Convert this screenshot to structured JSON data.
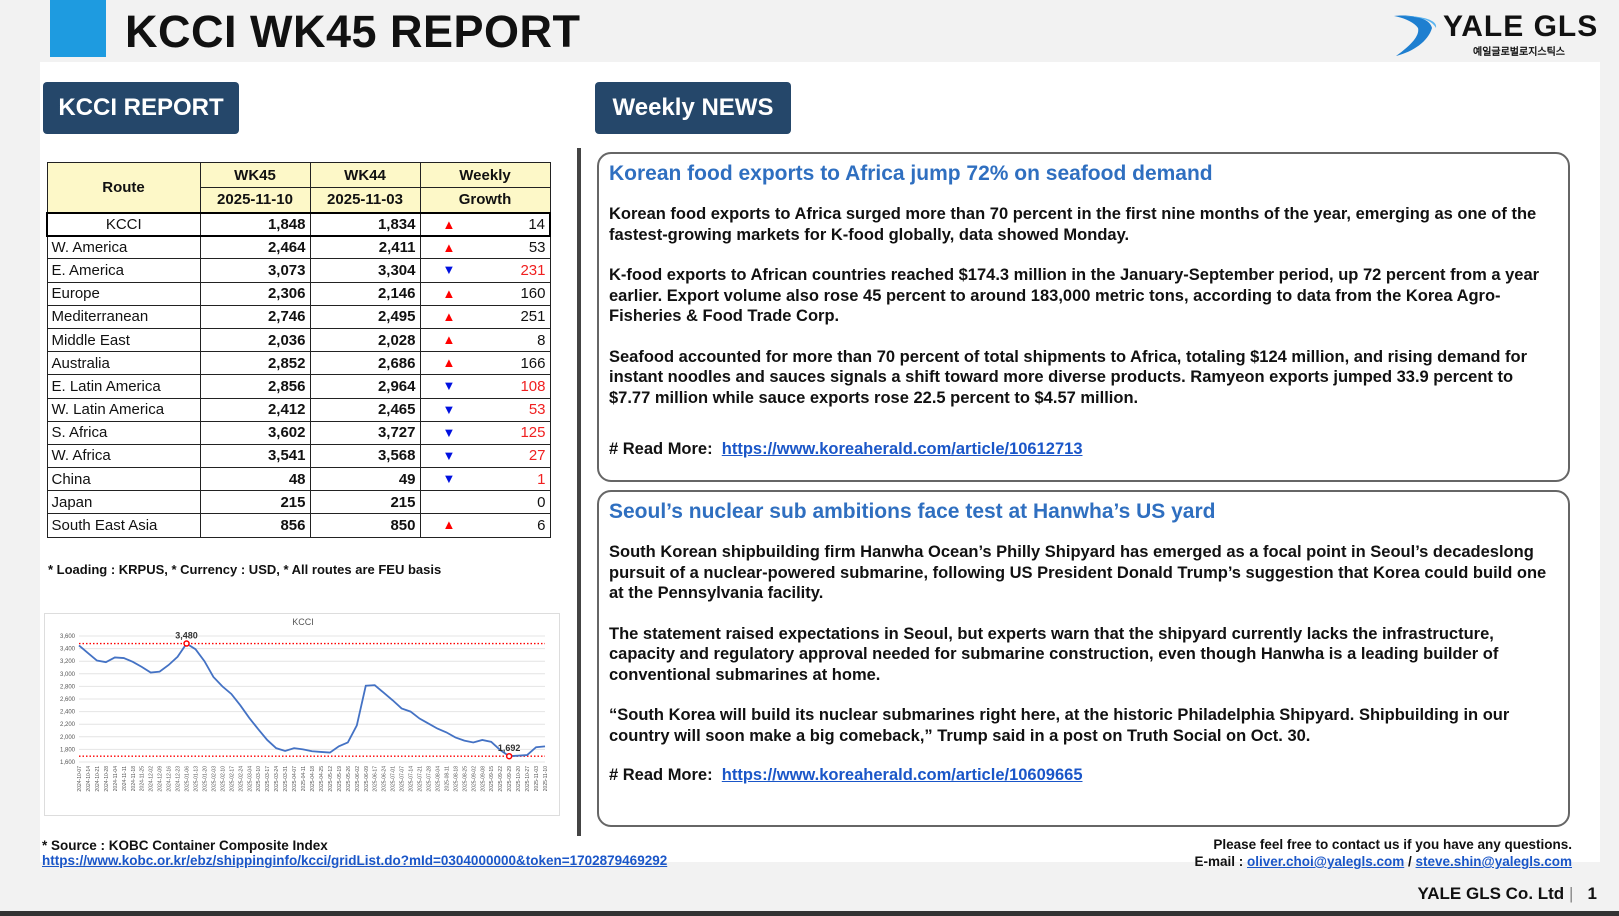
{
  "header": {
    "title": "KCCI WK45 REPORT",
    "logo": "YALE GLS",
    "logo_sub": "예일글로벌로지스틱스"
  },
  "left": {
    "badge": "KCCI REPORT",
    "table": {
      "headers": {
        "route": "Route",
        "wk45": "WK45",
        "wk45_date": "2025-11-10",
        "wk44": "WK44",
        "wk44_date": "2025-11-03",
        "growth1": "Weekly",
        "growth2": "Growth"
      },
      "rows": [
        {
          "route": "KCCI",
          "wk45": "1,848",
          "wk44": "1,834",
          "dir": "up",
          "growth": "14"
        },
        {
          "route": "W. America",
          "wk45": "2,464",
          "wk44": "2,411",
          "dir": "up",
          "growth": "53"
        },
        {
          "route": "E. America",
          "wk45": "3,073",
          "wk44": "3,304",
          "dir": "down",
          "growth": "231"
        },
        {
          "route": "Europe",
          "wk45": "2,306",
          "wk44": "2,146",
          "dir": "up",
          "growth": "160"
        },
        {
          "route": "Mediterranean",
          "wk45": "2,746",
          "wk44": "2,495",
          "dir": "up",
          "growth": "251"
        },
        {
          "route": "Middle East",
          "wk45": "2,036",
          "wk44": "2,028",
          "dir": "up",
          "growth": "8"
        },
        {
          "route": "Australia",
          "wk45": "2,852",
          "wk44": "2,686",
          "dir": "up",
          "growth": "166"
        },
        {
          "route": "E. Latin America",
          "wk45": "2,856",
          "wk44": "2,964",
          "dir": "down",
          "growth": "108"
        },
        {
          "route": "W. Latin America",
          "wk45": "2,412",
          "wk44": "2,465",
          "dir": "down",
          "growth": "53"
        },
        {
          "route": "S. Africa",
          "wk45": "3,602",
          "wk44": "3,727",
          "dir": "down",
          "growth": "125"
        },
        {
          "route": "W. Africa",
          "wk45": "3,541",
          "wk44": "3,568",
          "dir": "down",
          "growth": "27"
        },
        {
          "route": "China",
          "wk45": "48",
          "wk44": "49",
          "dir": "down",
          "growth": "1"
        },
        {
          "route": "Japan",
          "wk45": "215",
          "wk44": "215",
          "dir": "none",
          "growth": "0"
        },
        {
          "route": "South East Asia",
          "wk45": "856",
          "wk44": "850",
          "dir": "up",
          "growth": "6"
        }
      ]
    },
    "note": "* Loading :  KRPUS, * Currency : USD, * All routes are FEU basis",
    "source_label": "* Source : KOBC Container Composite Index",
    "source_url": "https://www.kobc.or.kr/ebz/shippinginfo/kcci/gridList.do?mId=0304000000&token=1702879469292"
  },
  "chart_data": {
    "type": "line",
    "title": "KCCI",
    "ylim": [
      1600,
      3600
    ],
    "yticks": [
      "1,600",
      "1,800",
      "2,000",
      "2,200",
      "2,400",
      "2,600",
      "2,800",
      "3,000",
      "3,200",
      "3,400",
      "3,600"
    ],
    "grid": true,
    "x": [
      "2024-10-07",
      "2024-10-14",
      "2024-10-21",
      "2024-10-28",
      "2024-11-04",
      "2024-11-11",
      "2024-11-18",
      "2024-11-25",
      "2024-12-02",
      "2024-12-09",
      "2024-12-16",
      "2024-12-23",
      "2025-01-06",
      "2025-01-13",
      "2025-01-20",
      "2025-02-03",
      "2025-02-10",
      "2025-02-17",
      "2025-02-24",
      "2025-03-04",
      "2025-03-10",
      "2025-03-17",
      "2025-03-24",
      "2025-03-31",
      "2025-04-07",
      "2025-04-11",
      "2025-04-18",
      "2025-04-25",
      "2025-05-12",
      "2025-05-19",
      "2025-05-26",
      "2025-06-02",
      "2025-06-09",
      "2025-06-17",
      "2025-06-24",
      "2025-07-01",
      "2025-07-07",
      "2025-07-14",
      "2025-07-21",
      "2025-07-28",
      "2025-08-04",
      "2025-08-11",
      "2025-08-18",
      "2025-08-25",
      "2025-09-02",
      "2025-09-08",
      "2025-09-15",
      "2025-09-22",
      "2025-09-29",
      "2025-10-20",
      "2025-10-27",
      "2025-11-03",
      "2025-11-10"
    ],
    "values": [
      3450,
      3330,
      3210,
      3185,
      3260,
      3250,
      3190,
      3110,
      3020,
      3035,
      3140,
      3270,
      3480,
      3390,
      3200,
      2950,
      2800,
      2680,
      2500,
      2300,
      2120,
      1950,
      1820,
      1775,
      1820,
      1800,
      1770,
      1760,
      1750,
      1850,
      1910,
      2180,
      2810,
      2820,
      2700,
      2580,
      2450,
      2400,
      2290,
      2210,
      2130,
      2070,
      1990,
      1940,
      1910,
      1950,
      1920,
      1790,
      1692,
      1700,
      1710,
      1834,
      1848
    ],
    "annotations": [
      {
        "x": "2025-01-06",
        "value": 3480,
        "label": "3,480"
      },
      {
        "x": "2025-09-29",
        "value": 1692,
        "label": "1,692"
      }
    ],
    "colors": {
      "line": "#4472c4",
      "ref": "#ff0000"
    }
  },
  "news": {
    "badge": "Weekly NEWS",
    "read_more": "# Read More:",
    "items": [
      {
        "title": "Korean food exports to Africa jump 72% on seafood demand",
        "paragraphs": [
          "Korean food exports to Africa surged more than 70 percent in the first nine months of the year, emerging as one of the fastest-growing markets for K-food globally, data showed Monday.",
          "K-food exports to African countries reached $174.3 million in the January-September period, up 72 percent from a year earlier. Export volume also rose 45 percent to around 183,000 metric tons, according to data from the Korea Agro-Fisheries & Food Trade Corp.",
          "Seafood accounted for more than 70 percent of total shipments to Africa, totaling $124 million, and rising demand for instant noodles and sauces signals a shift toward more diverse products. Ramyeon exports jumped 33.9 percent to $7.77 million while sauce exports rose 22.5 percent to $4.57 million."
        ],
        "url": "https://www.koreaherald.com/article/10612713"
      },
      {
        "title": "Seoul’s nuclear sub ambitions face test at Hanwha’s US yard",
        "paragraphs": [
          "South Korean shipbuilding firm Hanwha Ocean’s Philly Shipyard has emerged as a focal point in Seoul’s decadeslong pursuit of a nuclear-powered submarine, following US President Donald Trump’s suggestion that Korea could build one at the Pennsylvania facility.",
          "The statement raised expectations in Seoul, but experts warn that the shipyard currently lacks the infrastructure, capacity and regulatory approval needed for submarine construction, even though Hanwha is a leading builder of conventional submarines at home.",
          "“South Korea will build its nuclear submarines right here, at the historic Philadelphia Shipyard. Shipbuilding in our country will soon make a big comeback,” Trump said in a post on Truth Social on Oct. 30."
        ],
        "url": "https://www.koreaherald.com/article/10609665"
      }
    ]
  },
  "contact": {
    "line1": "Please feel free to contact us if you have any questions.",
    "email_label": "E-mail : ",
    "email1": "oliver.choi@yalegls.com",
    "sep": " / ",
    "email2": "steve.shin@yalegls.com"
  },
  "footer": {
    "company": "YALE GLS Co. Ltd",
    "page": "1"
  }
}
